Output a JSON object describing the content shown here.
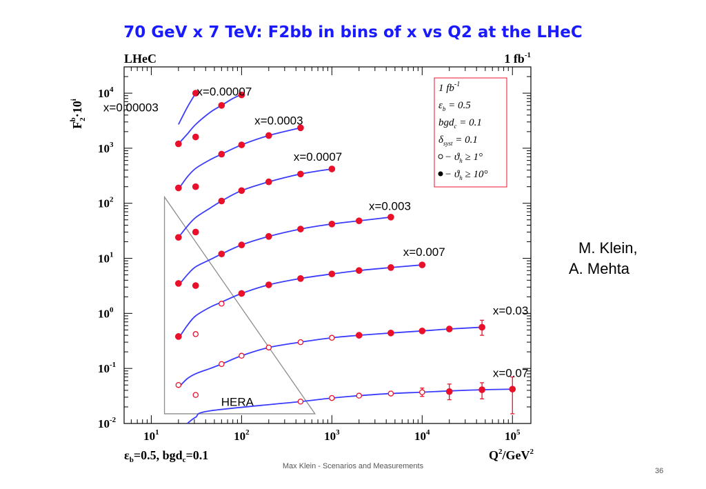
{
  "slide": {
    "title": "70 GeV x 7 TeV: F2bb in bins of x vs Q2 at the LHeC",
    "authors": [
      "M. Klein,",
      "A. Mehta"
    ],
    "footer": "Max Klein - Scenarios and Measurements",
    "page_number": "36"
  },
  "colors": {
    "title": "#1a1aff",
    "curve": "#3b3bff",
    "points": "#e8102a",
    "hera_triangle": "#8c8c8c",
    "legend_border": "#e8102a"
  },
  "chart_data": {
    "type": "scatter",
    "corner_label_left": "LHeC",
    "corner_label_right": "1 fb",
    "corner_label_right_sup": "-1",
    "ylabel": "F",
    "ylabel_sub": "2",
    "ylabel_sup": "b",
    "ylabel_suffix": "·10",
    "ylabel_suffix_sup": "i",
    "xlabel": "Q",
    "xlabel_sup": "2",
    "xlabel_suffix": "/GeV",
    "xlabel_suffix_sup": "2",
    "bottom_label": "ε",
    "bottom_label_sub": "b",
    "bottom_label_rest": "=0.5, bgd",
    "bottom_label_sub2": "c",
    "bottom_label_end": "=0.1",
    "x_scale": "log",
    "y_scale": "log",
    "xlim": [
      5,
      160000
    ],
    "ylim": [
      0.01,
      30000
    ],
    "x_ticks": [
      {
        "value": 10,
        "base": "10",
        "exp": "1"
      },
      {
        "value": 100,
        "base": "10",
        "exp": "2"
      },
      {
        "value": 1000,
        "base": "10",
        "exp": "3"
      },
      {
        "value": 10000,
        "base": "10",
        "exp": "4"
      },
      {
        "value": 100000,
        "base": "10",
        "exp": "5"
      }
    ],
    "y_ticks": [
      {
        "value": 0.01,
        "base": "10",
        "exp": "-2"
      },
      {
        "value": 0.1,
        "base": "10",
        "exp": "-1"
      },
      {
        "value": 1,
        "base": "10",
        "exp": "0"
      },
      {
        "value": 10,
        "base": "10",
        "exp": "1"
      },
      {
        "value": 100,
        "base": "10",
        "exp": "2"
      },
      {
        "value": 1000,
        "base": "10",
        "exp": "3"
      },
      {
        "value": 10000,
        "base": "10",
        "exp": "4"
      }
    ],
    "hera_label": "HERA",
    "hera_triangle": [
      [
        14,
        130
      ],
      [
        14,
        0.015
      ],
      [
        650,
        0.015
      ]
    ],
    "legend": [
      {
        "text": "1 fb",
        "sup": "-1",
        "marker": ""
      },
      {
        "text": "ε",
        "sub": "b",
        "rest": " = 0.5",
        "marker": ""
      },
      {
        "text": "bgd",
        "sub": "c",
        "rest": " = 0.1",
        "marker": ""
      },
      {
        "text": "δ",
        "sub": "syst",
        "rest": " = 0.1",
        "marker": ""
      },
      {
        "text": "− ϑ",
        "sub": "h",
        "rest": " ≥ 1°",
        "marker": "open"
      },
      {
        "text": "− ϑ",
        "sub": "h",
        "rest": " ≥ 10°",
        "marker": "filled"
      }
    ],
    "series": [
      {
        "name": "x=0.00003",
        "label_at": [
          12,
          4700
        ],
        "curve": [
          [
            20,
            2700
          ],
          [
            25,
            5500
          ],
          [
            31,
            10000
          ]
        ],
        "points": [
          {
            "x": 31,
            "y": 10000,
            "open": false
          }
        ]
      },
      {
        "name": "x=0.00007",
        "label_at": [
          130,
          9000
        ],
        "curve": [
          [
            20,
            1200
          ],
          [
            25,
            1800
          ],
          [
            31,
            2700
          ],
          [
            45,
            4500
          ],
          [
            60,
            6000
          ],
          [
            80,
            8000
          ],
          [
            100,
            9500
          ]
        ],
        "points": [
          {
            "x": 20,
            "y": 1200,
            "open": false
          },
          {
            "x": 31,
            "y": 1600,
            "open": false
          },
          {
            "x": 60,
            "y": 6000,
            "open": false
          },
          {
            "x": 100,
            "y": 9300,
            "open": false
          }
        ]
      },
      {
        "name": "x=0.0003",
        "label_at": [
          480,
          2700
        ],
        "curve": [
          [
            20,
            180
          ],
          [
            25,
            300
          ],
          [
            31,
            430
          ],
          [
            45,
            620
          ],
          [
            60,
            780
          ],
          [
            100,
            1150
          ],
          [
            200,
            1700
          ],
          [
            450,
            2350
          ]
        ],
        "points": [
          {
            "x": 20,
            "y": 190,
            "open": false
          },
          {
            "x": 31,
            "y": 200,
            "open": false
          },
          {
            "x": 60,
            "y": 780,
            "open": false
          },
          {
            "x": 100,
            "y": 1150,
            "open": false
          },
          {
            "x": 200,
            "y": 1700,
            "open": false
          },
          {
            "x": 450,
            "y": 2350,
            "open": false
          }
        ]
      },
      {
        "name": "x=0.0007",
        "label_at": [
          1300,
          590
        ],
        "curve": [
          [
            20,
            24
          ],
          [
            25,
            38
          ],
          [
            31,
            55
          ],
          [
            45,
            82
          ],
          [
            60,
            110
          ],
          [
            100,
            170
          ],
          [
            200,
            245
          ],
          [
            450,
            340
          ],
          [
            1000,
            420
          ]
        ],
        "points": [
          {
            "x": 20,
            "y": 24,
            "open": false
          },
          {
            "x": 31,
            "y": 30,
            "open": false
          },
          {
            "x": 60,
            "y": 110,
            "open": false
          },
          {
            "x": 100,
            "y": 170,
            "open": false
          },
          {
            "x": 200,
            "y": 245,
            "open": false
          },
          {
            "x": 450,
            "y": 340,
            "open": false
          },
          {
            "x": 1000,
            "y": 420,
            "open": false
          }
        ]
      },
      {
        "name": "x=0.003",
        "label_at": [
          7500,
          75
        ],
        "curve": [
          [
            20,
            3.2
          ],
          [
            25,
            5
          ],
          [
            31,
            7
          ],
          [
            45,
            9.5
          ],
          [
            60,
            12
          ],
          [
            100,
            17.5
          ],
          [
            200,
            25
          ],
          [
            450,
            34
          ],
          [
            1000,
            42
          ],
          [
            2000,
            48
          ],
          [
            4500,
            56
          ]
        ],
        "points": [
          {
            "x": 20,
            "y": 3.5,
            "open": false
          },
          {
            "x": 31,
            "y": 3.2,
            "open": false
          },
          {
            "x": 60,
            "y": 12,
            "open": false
          },
          {
            "x": 100,
            "y": 17.5,
            "open": false
          },
          {
            "x": 200,
            "y": 25,
            "open": false
          },
          {
            "x": 450,
            "y": 34,
            "open": false
          },
          {
            "x": 1000,
            "y": 42,
            "open": false
          },
          {
            "x": 2000,
            "y": 48,
            "open": false
          },
          {
            "x": 4500,
            "y": 56,
            "open": false
          }
        ]
      },
      {
        "name": "x=0.007",
        "label_at": [
          18000,
          11
        ],
        "curve": [
          [
            20,
            0.35
          ],
          [
            25,
            0.6
          ],
          [
            31,
            0.9
          ],
          [
            45,
            1.3
          ],
          [
            60,
            1.6
          ],
          [
            100,
            2.3
          ],
          [
            200,
            3.3
          ],
          [
            450,
            4.3
          ],
          [
            1000,
            5.2
          ],
          [
            2000,
            6.0
          ],
          [
            4500,
            6.8
          ],
          [
            10000,
            7.6
          ]
        ],
        "points": [
          {
            "x": 20,
            "y": 0.38,
            "open": false
          },
          {
            "x": 31,
            "y": 0.42,
            "open": true
          },
          {
            "x": 60,
            "y": 1.5,
            "open": true
          },
          {
            "x": 100,
            "y": 2.3,
            "open": false
          },
          {
            "x": 200,
            "y": 3.3,
            "open": false
          },
          {
            "x": 450,
            "y": 4.3,
            "open": false
          },
          {
            "x": 1000,
            "y": 5.2,
            "open": false
          },
          {
            "x": 2000,
            "y": 6.0,
            "open": false
          },
          {
            "x": 4500,
            "y": 6.8,
            "open": false
          },
          {
            "x": 10000,
            "y": 7.6,
            "open": false
          }
        ]
      },
      {
        "name": "x=0.03",
        "label_at": [
          150000,
          0.95
        ],
        "curve": [
          [
            20,
            0.045
          ],
          [
            25,
            0.065
          ],
          [
            31,
            0.08
          ],
          [
            45,
            0.1
          ],
          [
            60,
            0.12
          ],
          [
            100,
            0.17
          ],
          [
            200,
            0.24
          ],
          [
            450,
            0.3
          ],
          [
            1000,
            0.36
          ],
          [
            2000,
            0.4
          ],
          [
            4500,
            0.44
          ],
          [
            10000,
            0.48
          ],
          [
            20000,
            0.52
          ],
          [
            46000,
            0.56
          ]
        ],
        "points": [
          {
            "x": 20,
            "y": 0.05,
            "open": true
          },
          {
            "x": 31,
            "y": 0.033,
            "open": true
          },
          {
            "x": 60,
            "y": 0.12,
            "open": true
          },
          {
            "x": 100,
            "y": 0.17,
            "open": true
          },
          {
            "x": 200,
            "y": 0.24,
            "open": true
          },
          {
            "x": 450,
            "y": 0.3,
            "open": true
          },
          {
            "x": 1000,
            "y": 0.36,
            "open": true
          },
          {
            "x": 2000,
            "y": 0.4,
            "open": false
          },
          {
            "x": 4500,
            "y": 0.44,
            "open": false
          },
          {
            "x": 10000,
            "y": 0.48,
            "open": false
          },
          {
            "x": 20000,
            "y": 0.52,
            "open": false
          },
          {
            "x": 46000,
            "y": 0.56,
            "open": false,
            "err": [
              0.4,
              0.75
            ]
          }
        ]
      },
      {
        "name": "x=0.07",
        "label_at": [
          150000,
          0.07
        ],
        "curve": [
          [
            25,
            0.01
          ],
          [
            31,
            0.013
          ],
          [
            45,
            0.017
          ],
          [
            450,
            0.025
          ],
          [
            1000,
            0.029
          ],
          [
            2000,
            0.032
          ],
          [
            4500,
            0.035
          ],
          [
            10000,
            0.037
          ],
          [
            20000,
            0.039
          ],
          [
            46000,
            0.041
          ],
          [
            100000,
            0.042
          ]
        ],
        "points": [
          {
            "x": 450,
            "y": 0.025,
            "open": true
          },
          {
            "x": 1000,
            "y": 0.029,
            "open": true
          },
          {
            "x": 2000,
            "y": 0.032,
            "open": true
          },
          {
            "x": 4500,
            "y": 0.035,
            "open": true
          },
          {
            "x": 10000,
            "y": 0.037,
            "open": true,
            "err": [
              0.031,
              0.044
            ]
          },
          {
            "x": 20000,
            "y": 0.038,
            "open": false,
            "err": [
              0.027,
              0.052
            ]
          },
          {
            "x": 46000,
            "y": 0.041,
            "open": false,
            "err": [
              0.028,
              0.055
            ]
          },
          {
            "x": 100000,
            "y": 0.042,
            "open": false,
            "err": [
              0.015,
              0.07
            ]
          }
        ]
      }
    ]
  }
}
